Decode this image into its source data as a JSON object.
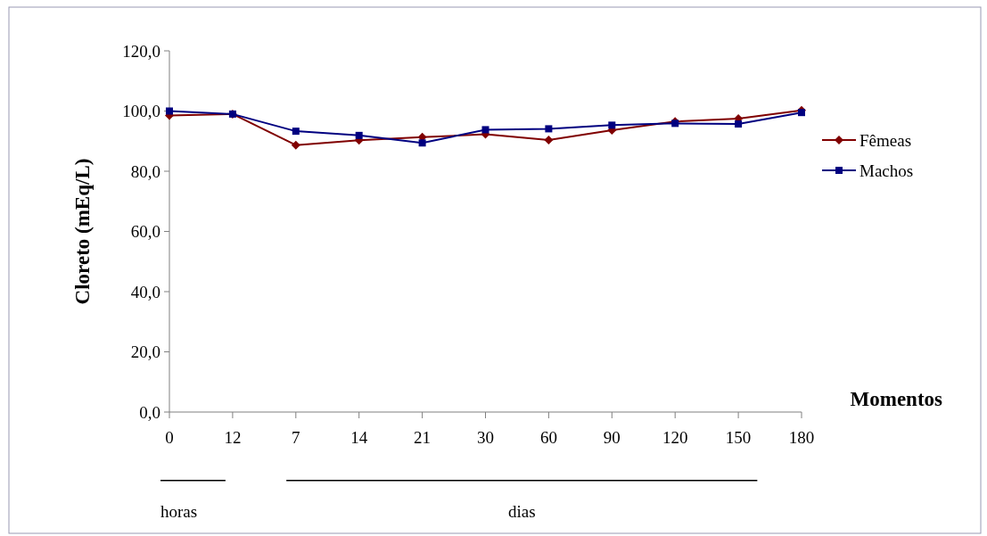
{
  "chart_data": {
    "type": "line",
    "ylabel": "Cloreto (mEq/L)",
    "xlabel": "Momentos",
    "categories": [
      "0",
      "12",
      "7",
      "14",
      "21",
      "30",
      "60",
      "90",
      "120",
      "150",
      "180"
    ],
    "series": [
      {
        "name": "Fêmeas",
        "color": "#800000",
        "marker": "diamond",
        "values": [
          98.5,
          99.0,
          88.7,
          90.3,
          91.3,
          92.3,
          90.4,
          93.6,
          96.5,
          97.5,
          100.2
        ]
      },
      {
        "name": "Machos",
        "color": "#000080",
        "marker": "square",
        "values": [
          100.0,
          99.0,
          93.3,
          91.9,
          89.4,
          93.8,
          94.1,
          95.3,
          95.9,
          95.7,
          99.5
        ]
      }
    ],
    "ylim": [
      0,
      120
    ],
    "yticks": [
      {
        "value": 0,
        "label": "0,0"
      },
      {
        "value": 20,
        "label": "20,0"
      },
      {
        "value": 40,
        "label": "40,0"
      },
      {
        "value": 60,
        "label": "60,0"
      },
      {
        "value": 80,
        "label": "80,0"
      },
      {
        "value": 100,
        "label": "100,0"
      },
      {
        "value": 120,
        "label": "120,0"
      }
    ],
    "annotations": [
      "horas",
      "dias"
    ],
    "legend": "right",
    "grid": false
  }
}
